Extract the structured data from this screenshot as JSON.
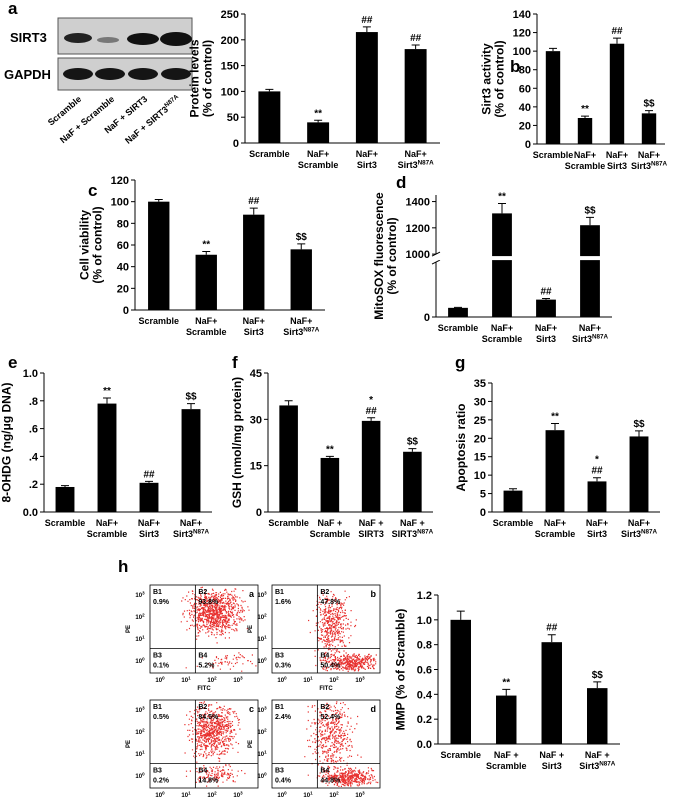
{
  "panel_labels": [
    "a",
    "b",
    "c",
    "d",
    "e",
    "f",
    "g",
    "h"
  ],
  "blot": {
    "rows": [
      "SIRT3",
      "GAPDH"
    ],
    "lanes": [
      "Scramble",
      "NaF + Scramble",
      "NaF + SIRT3",
      [
        "NaF + SIRT3",
        "N87A"
      ]
    ]
  },
  "flow": {
    "x_label": "FITC",
    "y_label": "PE",
    "tick_base": "10",
    "tick_exps": [
      "0",
      "1",
      "2",
      "3"
    ],
    "plots": [
      {
        "letter": "a",
        "quadrants": [
          [
            "B1",
            "0.9%"
          ],
          [
            "B2",
            "93.8%"
          ],
          [
            "B3",
            "0.1%"
          ],
          [
            "B4",
            "5.2%"
          ]
        ]
      },
      {
        "letter": "b",
        "quadrants": [
          [
            "B1",
            "1.6%"
          ],
          [
            "B2",
            "47.8%"
          ],
          [
            "B3",
            "0.3%"
          ],
          [
            "B4",
            "50.4%"
          ]
        ]
      },
      {
        "letter": "c",
        "quadrants": [
          [
            "B1",
            "0.5%"
          ],
          [
            "B2",
            "84.5%"
          ],
          [
            "B3",
            "0.2%"
          ],
          [
            "B4",
            "14.8%"
          ]
        ]
      },
      {
        "letter": "d",
        "quadrants": [
          [
            "B1",
            "2.4%"
          ],
          [
            "B2",
            "52.4%"
          ],
          [
            "B3",
            "0.4%"
          ],
          [
            "B4",
            "44.8%"
          ]
        ]
      }
    ]
  },
  "chart_data": [
    {
      "type": "bar",
      "color": "#000000",
      "ylabel": [
        "Protein levels",
        "(% of control)"
      ],
      "categories": [
        [
          "Scramble"
        ],
        [
          "NaF+",
          "Scramble"
        ],
        [
          "NaF+",
          "Sirt3"
        ],
        [
          "NaF+",
          [
            "Sirt3",
            "N87A"
          ]
        ]
      ],
      "values": [
        100,
        40,
        215,
        182
      ],
      "errors": [
        4,
        4,
        10,
        8
      ],
      "annotations": [
        [],
        [
          "**"
        ],
        [
          "##"
        ],
        [
          "##"
        ]
      ],
      "ylim": [
        0,
        250
      ],
      "yticks": [
        0,
        50,
        100,
        150,
        200,
        250
      ]
    },
    {
      "type": "bar",
      "color": "#000000",
      "ylabel": [
        "Sirt3 activity",
        "(% of control)"
      ],
      "categories": [
        [
          "Scramble"
        ],
        [
          "NaF+",
          "Scramble"
        ],
        [
          "NaF+",
          "Sirt3"
        ],
        [
          "NaF+",
          [
            "Sirt3",
            "N87A"
          ]
        ]
      ],
      "values": [
        100,
        28,
        108,
        33
      ],
      "errors": [
        3,
        2,
        6,
        3
      ],
      "annotations": [
        [],
        [
          "**"
        ],
        [
          "##"
        ],
        [
          "$$"
        ]
      ],
      "ylim": [
        0,
        140
      ],
      "yticks": [
        0,
        20,
        40,
        60,
        80,
        100,
        120,
        140
      ]
    },
    {
      "type": "bar",
      "color": "#000000",
      "ylabel": [
        "Cell viability",
        "(% of control)"
      ],
      "categories": [
        [
          "Scramble"
        ],
        [
          "NaF+",
          "Scramble"
        ],
        [
          "NaF+",
          "Sirt3"
        ],
        [
          "NaF+",
          [
            "Sirt3",
            "N87A"
          ]
        ]
      ],
      "values": [
        100,
        51,
        88,
        56
      ],
      "errors": [
        2,
        3,
        6,
        5
      ],
      "annotations": [
        [],
        [
          "**"
        ],
        [
          "##"
        ],
        [
          "$$"
        ]
      ],
      "ylim": [
        0,
        120
      ],
      "yticks": [
        0,
        20,
        40,
        60,
        80,
        100,
        120
      ]
    },
    {
      "type": "bar",
      "color": "#000000",
      "ylabel": [
        "MitoSOX fluorescence",
        "(% of control)"
      ],
      "categories": [
        [
          "Scramble"
        ],
        [
          "NaF+",
          "Scramble"
        ],
        [
          "NaF+",
          "Sirt3"
        ],
        [
          "NaF+",
          [
            "Sirt3",
            "N87A"
          ]
        ]
      ],
      "values": [
        100,
        1310,
        190,
        1220
      ],
      "errors": [
        5,
        75,
        12,
        60
      ],
      "annotations": [
        [],
        [
          "**"
        ],
        [
          "##"
        ],
        [
          "$$"
        ]
      ],
      "ylim": [
        0,
        1450
      ],
      "ybreak": [
        600,
        1000
      ],
      "yticks": [
        0,
        1000,
        1200,
        1400
      ]
    },
    {
      "type": "bar",
      "color": "#000000",
      "ylabel": [
        "8-OHDG (ng/μg DNA)"
      ],
      "categories": [
        [
          "Scramble"
        ],
        [
          "NaF+",
          "Scramble"
        ],
        [
          "NaF+",
          "Sirt3"
        ],
        [
          "NaF+",
          [
            "Sirt3",
            "N87A"
          ]
        ]
      ],
      "values": [
        0.18,
        0.78,
        0.21,
        0.74
      ],
      "errors": [
        0.01,
        0.04,
        0.01,
        0.04
      ],
      "annotations": [
        [],
        [
          "**"
        ],
        [
          "##"
        ],
        [
          "$$"
        ]
      ],
      "ylim": [
        0,
        1
      ],
      "yticks": [
        {
          "value": 0,
          "label": "0.0"
        },
        {
          "value": 0.2,
          "label": ".2"
        },
        {
          "value": 0.4,
          "label": ".4"
        },
        {
          "value": 0.6,
          "label": ".6"
        },
        {
          "value": 0.8,
          "label": ".8"
        },
        {
          "value": 1,
          "label": "1.0"
        }
      ]
    },
    {
      "type": "bar",
      "color": "#000000",
      "ylabel": [
        "GSH (nmol/mg protein)"
      ],
      "categories": [
        [
          "Scramble"
        ],
        [
          "NaF +",
          "Scramble"
        ],
        [
          "NaF +",
          "SIRT3"
        ],
        [
          "NaF +",
          [
            "SIRT3",
            "N87A"
          ]
        ]
      ],
      "values": [
        34.5,
        17.5,
        29.5,
        19.5
      ],
      "errors": [
        1.5,
        0.5,
        1,
        1
      ],
      "annotations": [
        [],
        [
          "**"
        ],
        [
          "*",
          "##"
        ],
        [
          "$$"
        ]
      ],
      "ylim": [
        0,
        45
      ],
      "yticks": [
        0,
        15,
        30,
        45
      ]
    },
    {
      "type": "bar",
      "color": "#000000",
      "ylabel": [
        "Apoptosis ratio"
      ],
      "categories": [
        [
          "Scramble"
        ],
        [
          "NaF+",
          "Scramble"
        ],
        [
          "NaF+",
          "Sirt3"
        ],
        [
          "NaF+",
          [
            "Sirt3",
            "N87A"
          ]
        ]
      ],
      "values": [
        5.8,
        22.2,
        8.3,
        20.5
      ],
      "errors": [
        0.5,
        1.8,
        1,
        1.5
      ],
      "annotations": [
        [],
        [
          "**"
        ],
        [
          "*",
          "##"
        ],
        [
          "$$"
        ]
      ],
      "ylim": [
        0,
        35
      ],
      "yticks": [
        0,
        5,
        10,
        15,
        20,
        25,
        30,
        35
      ]
    },
    {
      "type": "bar",
      "color": "#000000",
      "ylabel": [
        "MMP (% of Scramble)"
      ],
      "categories": [
        [
          "Scramble"
        ],
        [
          "NaF +",
          "Scramble"
        ],
        [
          "NaF +",
          "Sirt3"
        ],
        [
          "NaF +",
          [
            "Sirt3",
            "N87A"
          ]
        ]
      ],
      "values": [
        1.0,
        0.39,
        0.82,
        0.45
      ],
      "errors": [
        0.07,
        0.05,
        0.06,
        0.05
      ],
      "annotations": [
        [],
        [
          "**"
        ],
        [
          "##"
        ],
        [
          "$$"
        ]
      ],
      "ylim": [
        0,
        1.2
      ],
      "yticks": [
        {
          "value": 0,
          "label": "0.0"
        },
        0.2,
        0.4,
        0.6,
        0.8,
        {
          "value": 1,
          "label": "1.0"
        },
        1.2
      ]
    }
  ]
}
